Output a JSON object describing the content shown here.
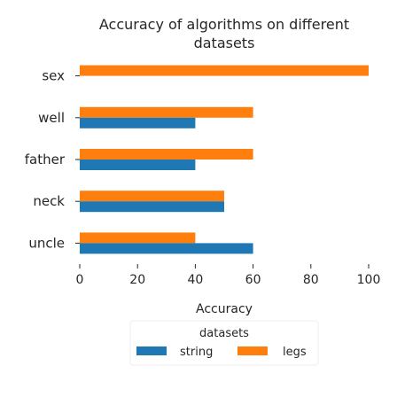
{
  "chart_data": {
    "type": "bar",
    "orientation": "horizontal",
    "title": "Accuracy of algorithms on different datasets",
    "title_lines": [
      "Accuracy of algorithms on different",
      "datasets"
    ],
    "xlabel": "Accuracy",
    "ylabel": "",
    "xlim": [
      0,
      100
    ],
    "x_ticks": [
      "0",
      "20",
      "40",
      "60",
      "80",
      "100"
    ],
    "categories": [
      "sex",
      "well",
      "father",
      "neck",
      "uncle"
    ],
    "series": [
      {
        "name": "string",
        "color": "#1f77b4",
        "values": [
          0,
          40,
          40,
          50,
          60
        ]
      },
      {
        "name": "legs",
        "color": "#ff7f0e",
        "values": [
          100,
          60,
          60,
          50,
          40
        ]
      }
    ],
    "legend": {
      "title": "datasets",
      "placement": "bottom"
    },
    "grid": false
  }
}
